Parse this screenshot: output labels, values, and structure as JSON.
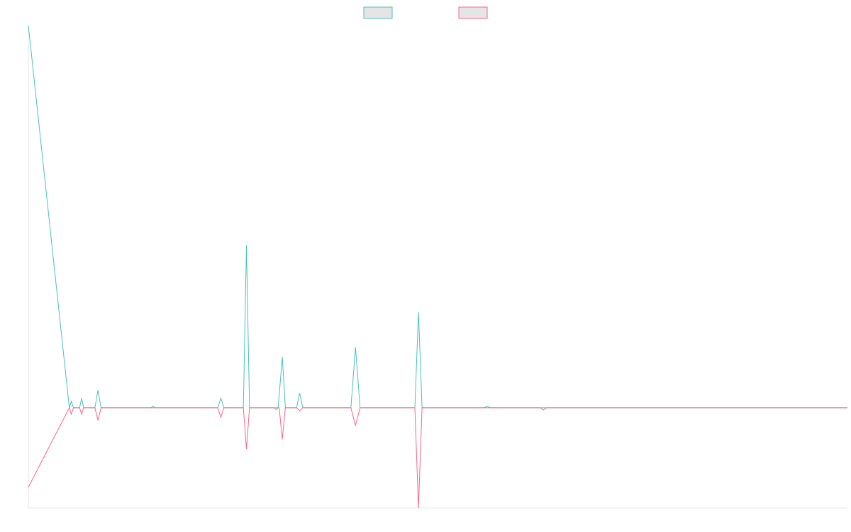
{
  "chart_data": {
    "type": "line",
    "title": "",
    "xlabel": "",
    "ylabel": "",
    "grid": false,
    "legend": "top-center",
    "x": [
      0,
      1,
      2,
      3,
      4,
      5,
      6,
      7,
      8,
      9,
      10,
      11,
      12,
      13,
      14,
      15,
      16,
      17,
      18,
      19,
      20,
      21,
      22,
      23,
      24,
      25,
      26,
      27,
      28,
      29,
      30,
      31,
      32,
      33,
      34,
      35,
      36,
      37,
      38,
      39,
      40,
      41,
      42,
      43,
      44,
      45,
      46,
      47,
      48,
      49,
      50,
      51,
      52,
      53,
      54,
      55,
      56,
      57,
      58,
      59,
      60,
      61,
      62,
      63,
      64,
      65,
      66,
      67,
      68,
      69,
      70,
      71,
      72,
      73,
      74,
      75,
      76,
      77,
      78,
      79,
      80,
      81,
      82,
      83,
      84,
      85,
      86,
      87,
      88,
      89,
      90,
      91,
      92,
      93,
      94,
      95,
      96,
      97,
      98,
      99,
      100,
      101,
      102,
      103,
      104,
      105,
      106,
      107,
      108,
      109,
      110,
      111,
      112,
      113,
      114,
      115,
      116,
      117,
      118,
      119,
      120,
      121,
      122,
      123,
      124,
      125,
      126,
      127,
      128,
      129,
      130,
      131,
      132,
      133,
      134,
      135,
      136,
      137,
      138,
      139,
      140,
      141,
      142,
      143,
      144,
      145,
      146,
      147,
      148,
      149,
      150,
      151,
      152,
      153,
      154,
      155,
      156,
      157,
      158,
      159,
      160
    ],
    "series": [
      {
        "name": "",
        "color": "#4bc0c0",
        "points": [
          [
            0,
            100
          ],
          [
            8,
            0
          ],
          [
            8.4,
            1.7
          ],
          [
            8.8,
            0
          ],
          [
            10,
            0
          ],
          [
            10.4,
            2.5
          ],
          [
            10.8,
            0
          ],
          [
            13,
            0
          ],
          [
            13.6,
            4.6
          ],
          [
            14.2,
            0
          ],
          [
            24,
            0
          ],
          [
            24.4,
            0.4
          ],
          [
            24.8,
            0
          ],
          [
            37,
            0
          ],
          [
            37.6,
            2.5
          ],
          [
            38.2,
            0
          ],
          [
            42,
            0
          ],
          [
            42.6,
            42.5
          ],
          [
            43.2,
            0
          ],
          [
            48,
            0
          ],
          [
            48.4,
            -0.5
          ],
          [
            48.8,
            0
          ],
          [
            49.6,
            13.3
          ],
          [
            50.2,
            0
          ],
          [
            52.4,
            0
          ],
          [
            53,
            3.8
          ],
          [
            53.6,
            0
          ],
          [
            63,
            0
          ],
          [
            63.9,
            15.8
          ],
          [
            64.8,
            0
          ],
          [
            75.5,
            0
          ],
          [
            76.2,
            25
          ],
          [
            76.9,
            0
          ],
          [
            89,
            0
          ],
          [
            89.6,
            0.4
          ],
          [
            90.2,
            0
          ],
          [
            160,
            0
          ]
        ]
      },
      {
        "name": "",
        "color": "#ff6384",
        "points": [
          [
            0,
            -20.8
          ],
          [
            8,
            0
          ],
          [
            8.4,
            -1.7
          ],
          [
            8.8,
            0
          ],
          [
            10,
            0
          ],
          [
            10.4,
            -1.7
          ],
          [
            10.8,
            0
          ],
          [
            13,
            0
          ],
          [
            13.6,
            -3.3
          ],
          [
            14.2,
            0
          ],
          [
            37,
            0
          ],
          [
            37.6,
            -2.5
          ],
          [
            38.2,
            0
          ],
          [
            42,
            0
          ],
          [
            42.6,
            -10.8
          ],
          [
            43.2,
            0
          ],
          [
            49,
            0
          ],
          [
            49.6,
            -8.3
          ],
          [
            50.2,
            0
          ],
          [
            52.4,
            0
          ],
          [
            53,
            -0.8
          ],
          [
            53.6,
            0
          ],
          [
            63,
            0
          ],
          [
            63.9,
            -4.6
          ],
          [
            64.8,
            0
          ],
          [
            75.5,
            0
          ],
          [
            76.2,
            -26.2
          ],
          [
            76.9,
            0
          ],
          [
            100,
            0
          ],
          [
            100.6,
            -0.6
          ],
          [
            101.2,
            0
          ],
          [
            160,
            0
          ]
        ]
      }
    ],
    "xlim": [
      0,
      160
    ],
    "ylim": [
      -26.2,
      100
    ]
  }
}
